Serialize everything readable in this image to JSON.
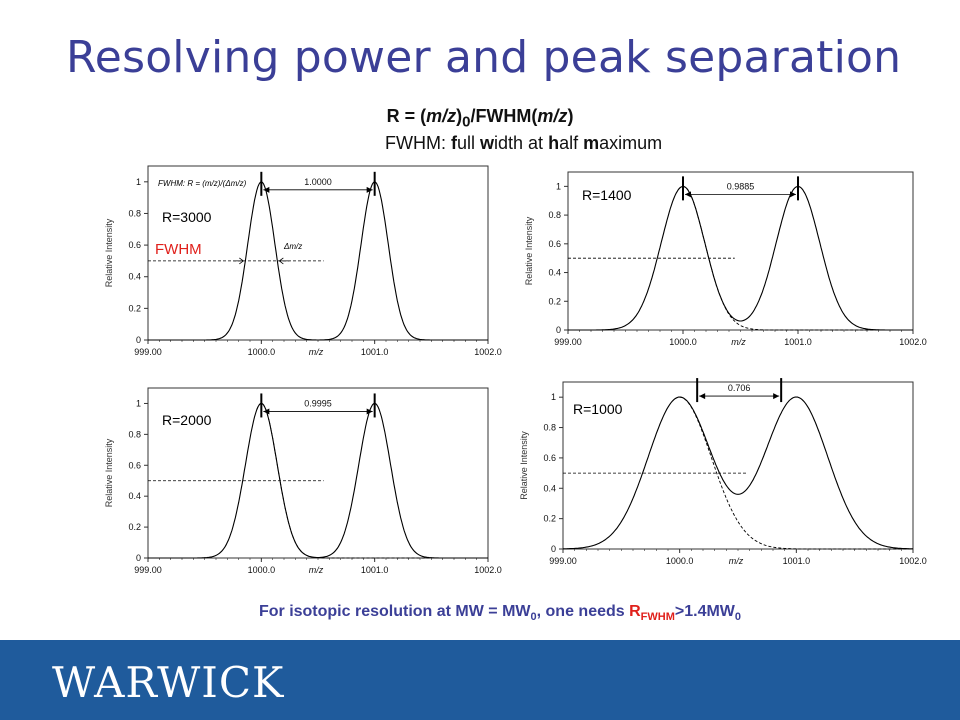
{
  "slide": {
    "title": "Resolving power and peak separation",
    "formula_html": "R = (<i>m/z</i>)<sub>0</sub>/FWHM(<i>m/z</i>)",
    "fwhm_definition_html": "FWHM: <b>f</b>ull <b>w</b>idth at <b>h</b>alf <b>m</b>aximum",
    "note_html": "For isotopic resolution at MW = MW<sub>0</sub>, one needs <span class=\"red\">R<sub>FWHM</sub></span>&gt;1.4MW<sub>0</sub>",
    "footer_logo": "WARWICK",
    "colors": {
      "title": "#3b3f97",
      "note_red": "#e0201b",
      "footer": "#1f5b9c",
      "fwhm_label": "#e0201b"
    }
  },
  "chart_data": [
    {
      "type": "line",
      "resolution_label": "R=3000",
      "xlabel": "m/z",
      "ylabel": "Relative Intensity",
      "xlim": [
        999.0,
        1002.0
      ],
      "ylim": [
        0,
        1.1
      ],
      "x_tick_labels": [
        "999.00",
        "1000.0",
        "1001.0",
        "1002.0"
      ],
      "y_tick_labels": [
        "0",
        "0.2",
        "0.4",
        "0.6",
        "0.8",
        "1"
      ],
      "separation_label": "1.0000",
      "peak_centers": [
        1000.0,
        1001.0
      ],
      "formula_annotation": "FWHM: R = (m/z)/(Δm/z)",
      "delta_annotation": "Δm/z",
      "fwhm_label": "FWHM",
      "half_max_line": 0.5
    },
    {
      "type": "line",
      "resolution_label": "R=1400",
      "xlabel": "m/z",
      "ylabel": "Relative Intensity",
      "xlim": [
        999.0,
        1002.0
      ],
      "ylim": [
        0,
        1.1
      ],
      "x_tick_labels": [
        "999.00",
        "1000.0",
        "1001.0",
        "1002.0"
      ],
      "y_tick_labels": [
        "0",
        "0.2",
        "0.4",
        "0.6",
        "0.8",
        "1"
      ],
      "separation_label": "0.9885",
      "peak_centers": [
        1000.0,
        1001.0
      ],
      "half_max_line": 0.5
    },
    {
      "type": "line",
      "resolution_label": "R=2000",
      "xlabel": "m/z",
      "ylabel": "Relative Intensity",
      "xlim": [
        999.0,
        1002.0
      ],
      "ylim": [
        0,
        1.1
      ],
      "x_tick_labels": [
        "999.00",
        "1000.0",
        "1001.0",
        "1002.0"
      ],
      "y_tick_labels": [
        "0",
        "0.2",
        "0.4",
        "0.6",
        "0.8",
        "1"
      ],
      "separation_label": "0.9995",
      "peak_centers": [
        1000.0,
        1001.0
      ],
      "half_max_line": 0.5
    },
    {
      "type": "line",
      "resolution_label": "R=1000",
      "xlabel": "m/z",
      "ylabel": "Relative Intensity",
      "xlim": [
        999.0,
        1002.0
      ],
      "ylim": [
        0,
        1.1
      ],
      "x_tick_labels": [
        "999.00",
        "1000.0",
        "1001.0",
        "1002.0"
      ],
      "y_tick_labels": [
        "0",
        "0.2",
        "0.4",
        "0.6",
        "0.8",
        "1"
      ],
      "separation_label": "0.706",
      "peak_centers": [
        1000.0,
        1001.0
      ],
      "half_max_line": 0.5
    }
  ]
}
